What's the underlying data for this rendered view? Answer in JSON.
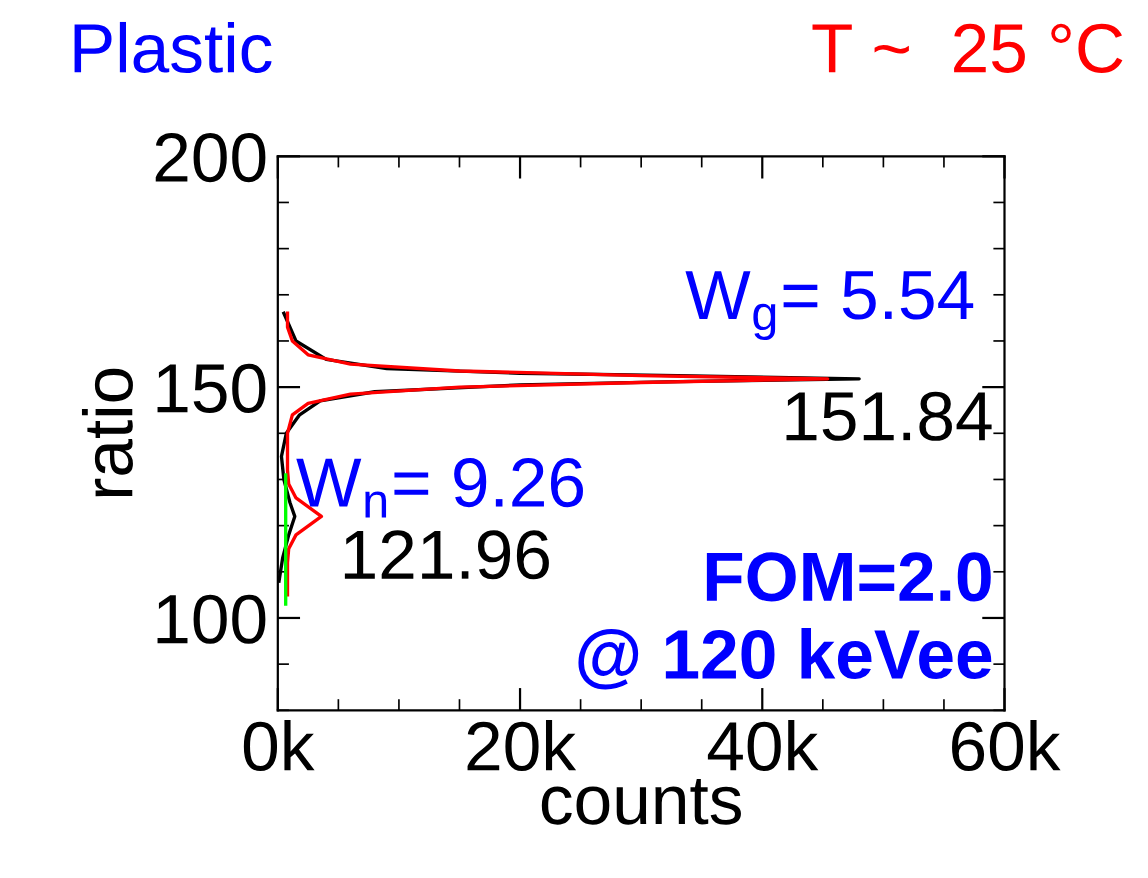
{
  "chart_data": {
    "type": "line",
    "title": "Plastic",
    "subtitle": "T ~  25 °C",
    "xlabel": "counts",
    "ylabel": "ratio",
    "xlim": [
      0,
      60000
    ],
    "ylim": [
      80,
      200
    ],
    "xticks": [
      {
        "value": 0,
        "label": "0k"
      },
      {
        "value": 20000,
        "label": "20k"
      },
      {
        "value": 40000,
        "label": "40k"
      },
      {
        "value": 60000,
        "label": "60k"
      }
    ],
    "yticks": [
      {
        "value": 100,
        "label": "100"
      },
      {
        "value": 150,
        "label": "150"
      },
      {
        "value": 200,
        "label": "200"
      }
    ],
    "grid": false,
    "legend": false,
    "series": [
      {
        "color": "#000000",
        "x": [
          100,
          400,
          900,
          1400,
          1000,
          500,
          300,
          700,
          1800,
          3500,
          8000,
          20000,
          33000,
          48000,
          33000,
          20000,
          9000,
          4000,
          1500,
          500
        ],
        "values": [
          108,
          113,
          118,
          122,
          125,
          130,
          135,
          140,
          144,
          147,
          149,
          150.5,
          151.2,
          151.8,
          152.5,
          153,
          154,
          156,
          160,
          166
        ]
      },
      {
        "color": "#ff0000",
        "x": [
          800,
          800,
          900,
          1500,
          3600,
          1500,
          900,
          800,
          800,
          1200,
          2500,
          6000,
          15000,
          30000,
          45400,
          30000,
          15000,
          6000,
          2500,
          1200,
          800,
          800
        ],
        "values": [
          105,
          112,
          115,
          118,
          122,
          126,
          129,
          132,
          140,
          144,
          146.5,
          148.5,
          150,
          151,
          151.8,
          152.5,
          153.5,
          155,
          157,
          160,
          163,
          166
        ]
      },
      {
        "color": "#00ff00",
        "x": [
          650,
          650
        ],
        "values": [
          103,
          131
        ]
      }
    ],
    "annotations": [
      "W$_{g}$= 5.54",
      "151.84",
      "W$_{n}$= 9.26",
      "121.96",
      "FOM=2.0",
      "@ 120 keVee"
    ]
  }
}
